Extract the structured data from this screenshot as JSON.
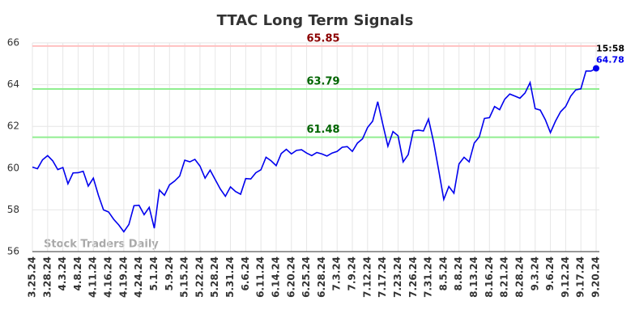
{
  "chart_data": {
    "type": "line",
    "title": "TTAC Long Term Signals",
    "watermark": "Stock Traders Daily",
    "last_time": "15:58",
    "categories": [
      "3.25.24",
      null,
      null,
      "3.28.24",
      null,
      null,
      "4.3.24",
      null,
      null,
      "4.8.24",
      null,
      null,
      "4.11.24",
      null,
      null,
      "4.16.24",
      null,
      null,
      "4.19.24",
      null,
      null,
      "4.24.24",
      null,
      null,
      "5.1.24",
      null,
      null,
      "5.9.24",
      null,
      null,
      "5.15.24",
      null,
      null,
      "5.22.24",
      null,
      null,
      "5.28.24",
      null,
      null,
      "5.31.24",
      null,
      null,
      "6.6.24",
      null,
      null,
      "6.11.24",
      null,
      null,
      "6.14.24",
      null,
      null,
      "6.20.24",
      null,
      null,
      "6.25.24",
      null,
      null,
      "6.28.24",
      null,
      null,
      "7.3.24",
      null,
      null,
      "7.9.24",
      null,
      null,
      "7.12.24",
      null,
      null,
      "7.17.24",
      null,
      null,
      "7.23.24",
      null,
      null,
      "7.26.24",
      null,
      null,
      "7.31.24",
      null,
      null,
      "8.5.24",
      null,
      null,
      "8.8.24",
      null,
      null,
      "8.13.24",
      null,
      null,
      "8.16.24",
      null,
      null,
      "8.21.24",
      null,
      null,
      "8.28.24",
      null,
      null,
      "9.3.24",
      null,
      null,
      "9.6.24",
      null,
      null,
      "9.12.24",
      null,
      null,
      "9.17.24",
      null,
      null,
      "9.20.24"
    ],
    "values": [
      60.05,
      59.97,
      60.4,
      60.6,
      60.35,
      59.93,
      60.03,
      59.25,
      59.77,
      59.78,
      59.85,
      59.14,
      59.52,
      58.7,
      58.0,
      57.9,
      57.55,
      57.28,
      56.95,
      57.3,
      58.2,
      58.22,
      57.77,
      58.12,
      57.12,
      58.95,
      58.7,
      59.2,
      59.38,
      59.62,
      60.38,
      60.3,
      60.42,
      60.1,
      59.52,
      59.9,
      59.45,
      59.0,
      58.65,
      59.1,
      58.88,
      58.75,
      59.5,
      59.48,
      59.78,
      59.92,
      60.52,
      60.35,
      60.12,
      60.7,
      60.9,
      60.68,
      60.85,
      60.88,
      60.72,
      60.6,
      60.75,
      60.68,
      60.58,
      60.72,
      60.8,
      61.0,
      61.03,
      60.8,
      61.2,
      61.4,
      61.95,
      62.25,
      63.18,
      62.1,
      61.05,
      61.75,
      61.55,
      60.3,
      60.65,
      61.78,
      61.82,
      61.78,
      62.35,
      61.25,
      59.9,
      58.5,
      59.12,
      58.8,
      60.2,
      60.52,
      60.3,
      61.2,
      61.5,
      62.38,
      62.42,
      62.95,
      62.8,
      63.3,
      63.55,
      63.45,
      63.35,
      63.6,
      64.1,
      62.85,
      62.78,
      62.32,
      61.7,
      62.25,
      62.7,
      62.95,
      63.45,
      63.75,
      63.8,
      64.65,
      64.65,
      64.78
    ],
    "color": "#0000ee",
    "reference_lines": [
      {
        "value": 65.85,
        "color": "#ffc0c0",
        "label_color": "#8b0000"
      },
      {
        "value": 63.79,
        "color": "#90ee90",
        "label_color": "#006400"
      },
      {
        "value": 61.48,
        "color": "#90ee90",
        "label_color": "#006400"
      }
    ],
    "ylim": [
      56,
      66
    ],
    "yticks": [
      56,
      58,
      60,
      62,
      64,
      66
    ],
    "grid": true
  }
}
